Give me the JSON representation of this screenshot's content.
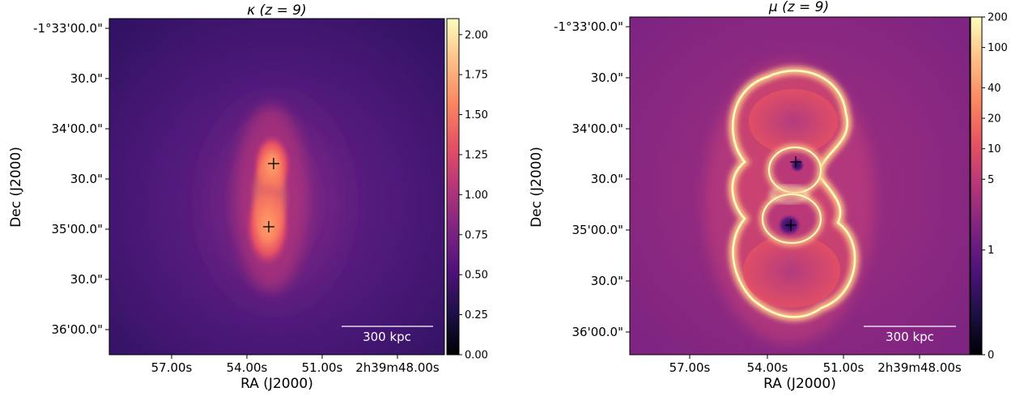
{
  "chart_data": [
    {
      "type": "heatmap",
      "title": "κ (z = 9)",
      "xlabel": "RA (J2000)",
      "ylabel": "Dec (J2000)",
      "xticks": [
        "57.00s",
        "54.00s",
        "51.00s",
        "2h39m48.00s"
      ],
      "yticks": [
        "-1°33'00.0\"",
        "30.0\"",
        "34'00.0\"",
        "30.0\"",
        "35'00.0\"",
        "30.0\"",
        "36'00.0\""
      ],
      "colorbar": {
        "scale": "linear",
        "ticks": [
          "0.00",
          "0.25",
          "0.50",
          "0.75",
          "1.00",
          "1.25",
          "1.50",
          "1.75",
          "2.00"
        ],
        "range": [
          0,
          2.1
        ],
        "colormap": "magma"
      },
      "scalebar": "300 kpc",
      "markers": [
        {
          "x": "53.6s",
          "y": "34'40\""
        },
        {
          "x": "53.8s",
          "y": "34'58\""
        }
      ]
    },
    {
      "type": "heatmap",
      "title": "μ (z = 9)",
      "xlabel": "RA (J2000)",
      "ylabel": "Dec (J2000)",
      "xticks": [
        "57.00s",
        "54.00s",
        "51.00s",
        "2h39m48.00s"
      ],
      "yticks": [
        "-1°33'00.0\"",
        "30.0\"",
        "34'00.0\"",
        "30.0\"",
        "35'00.0\"",
        "30.0\"",
        "36'00.0\""
      ],
      "colorbar": {
        "scale": "log",
        "ticks": [
          "200",
          "100",
          "40",
          "20",
          "10",
          "5",
          "1",
          "0"
        ],
        "range": [
          0,
          200
        ],
        "colormap": "magma"
      },
      "scalebar": "300 kpc",
      "markers": [
        {
          "x": "53.6s",
          "y": "34'40\""
        },
        {
          "x": "53.8s",
          "y": "34'58\""
        }
      ]
    }
  ]
}
